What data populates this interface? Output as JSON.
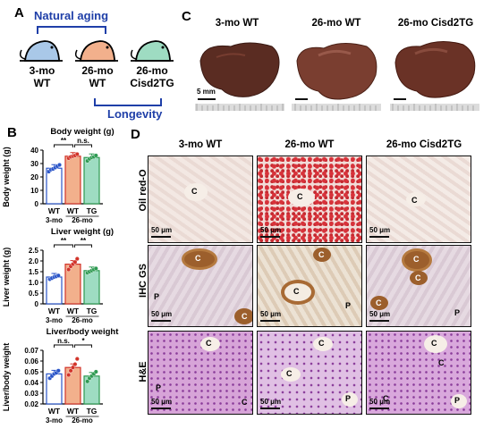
{
  "panelA": {
    "letter": "A",
    "natural_aging": "Natural aging",
    "longevity": "Longevity",
    "mice": [
      {
        "line1": "3-mo",
        "line2": "WT",
        "color": "#a9c8e8"
      },
      {
        "line1": "26-mo",
        "line2": "WT",
        "color": "#f2b08c"
      },
      {
        "line1": "26-mo",
        "line2": "Cisd2TG",
        "color": "#9edcc2"
      }
    ]
  },
  "panelB": {
    "letter": "B",
    "charts": [
      {
        "title": "Body weight (g)",
        "ylabel": "Body weight (g)",
        "type": "bar",
        "ticks": [
          "0",
          "10",
          "20",
          "30",
          "40"
        ],
        "ylim": [
          0,
          40
        ],
        "sig": [
          "**",
          "n.s."
        ],
        "groups": [
          {
            "label": "WT",
            "value": 26.5,
            "points": [
              24,
              25.5,
              26,
              27,
              28,
              29
            ],
            "fill": "#ffffff",
            "edge": "#2a55c8"
          },
          {
            "label": "WT",
            "value": 35.5,
            "points": [
              34,
              35,
              35.5,
              36,
              37
            ],
            "fill": "#f2b08c",
            "edge": "#d2342a"
          },
          {
            "label": "TG",
            "value": 34.5,
            "points": [
              32,
              33.5,
              34.5,
              35,
              36
            ],
            "fill": "#9edcc2",
            "edge": "#2e9a52"
          }
        ]
      },
      {
        "title": "Liver weight (g)",
        "ylabel": "Liver weight (g)",
        "type": "bar",
        "ticks": [
          "0",
          "0.5",
          "1.0",
          "1.5",
          "2.0",
          "2.5"
        ],
        "ylim": [
          0,
          2.5
        ],
        "sig": [
          "**",
          "**"
        ],
        "groups": [
          {
            "label": "WT",
            "value": 1.25,
            "points": [
              1.15,
              1.2,
              1.25,
              1.28,
              1.32
            ],
            "fill": "#ffffff",
            "edge": "#2a55c8"
          },
          {
            "label": "WT",
            "value": 1.85,
            "points": [
              1.6,
              1.75,
              1.85,
              1.95,
              2.1
            ],
            "fill": "#f2b08c",
            "edge": "#d2342a"
          },
          {
            "label": "TG",
            "value": 1.55,
            "points": [
              1.45,
              1.5,
              1.55,
              1.6,
              1.65
            ],
            "fill": "#9edcc2",
            "edge": "#2e9a52"
          }
        ]
      },
      {
        "title": "Liver/body weight",
        "ylabel": "Liver/body weight",
        "type": "bar",
        "ticks": [
          "0.02",
          "0.03",
          "0.04",
          "0.05",
          "0.06",
          "0.07"
        ],
        "ylim": [
          0.02,
          0.07
        ],
        "sig": [
          "n.s.",
          "*"
        ],
        "groups": [
          {
            "label": "WT",
            "value": 0.048,
            "points": [
              0.044,
              0.046,
              0.048,
              0.049,
              0.051
            ],
            "fill": "#ffffff",
            "edge": "#2a55c8"
          },
          {
            "label": "WT",
            "value": 0.054,
            "points": [
              0.047,
              0.051,
              0.054,
              0.057,
              0.062
            ],
            "fill": "#f2b08c",
            "edge": "#d2342a"
          },
          {
            "label": "TG",
            "value": 0.046,
            "points": [
              0.041,
              0.044,
              0.046,
              0.048,
              0.05
            ],
            "fill": "#9edcc2",
            "edge": "#2e9a52"
          }
        ]
      }
    ],
    "group_label_3mo": "3-mo",
    "group_label_26mo": "26-mo"
  },
  "panelC": {
    "letter": "C",
    "columns": [
      "3-mo WT",
      "26-mo WT",
      "26-mo Cisd2TG"
    ],
    "scale_label": "5 mm"
  },
  "panelD": {
    "letter": "D",
    "columns": [
      "3-mo WT",
      "26-mo WT",
      "26-mo Cisd2TG"
    ],
    "rows": [
      "Oil red-O",
      "IHC GS",
      "H&E"
    ],
    "scale_label": "50 μm",
    "vein_c": "C",
    "vein_p": "P"
  }
}
